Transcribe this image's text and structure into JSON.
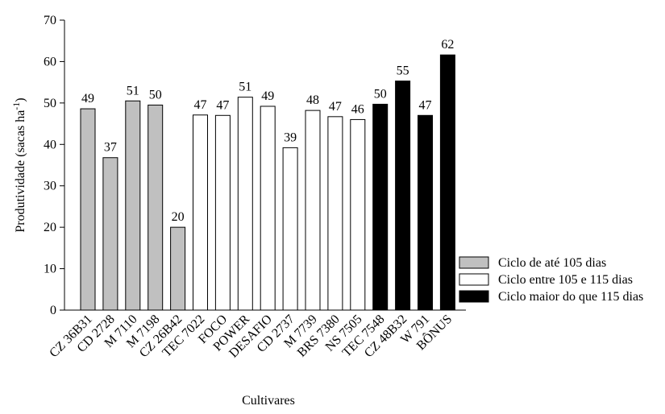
{
  "chart_data": {
    "type": "bar",
    "xlabel": "Cultivares",
    "ylabel": {
      "text": "Produtividade (sacas ha",
      "superscript": "-1",
      "end": ")"
    },
    "categories": [
      "CZ 36B31",
      "CD 2728",
      "M 7110",
      "M 7198",
      "CZ 26B42",
      "TEC 7022",
      "FOCO",
      "POWER",
      "DESAFIO",
      "CD 2737",
      "M 7739",
      "BRS 7380",
      "NS 7505",
      "TEC 7548",
      "CZ 48B32",
      "W 791",
      "BÔNUS"
    ],
    "series": [
      {
        "name": "Ciclo de até 105 dias",
        "color": "#c0c0c0",
        "values": [
          48.6,
          36.8,
          50.5,
          49.5,
          20.0,
          null,
          null,
          null,
          null,
          null,
          null,
          null,
          null,
          null,
          null,
          null,
          null
        ],
        "value_labels": [
          "49",
          "37",
          "51",
          "50",
          "20",
          null,
          null,
          null,
          null,
          null,
          null,
          null,
          null,
          null,
          null,
          null,
          null
        ]
      },
      {
        "name": "Ciclo entre 105 e 115 dias",
        "color": "#ffffff",
        "values": [
          null,
          null,
          null,
          null,
          null,
          47.1,
          47.0,
          51.4,
          49.2,
          39.2,
          48.2,
          46.7,
          46.0,
          null,
          null,
          null,
          null
        ],
        "value_labels": [
          null,
          null,
          null,
          null,
          null,
          "47",
          "47",
          "51",
          "49",
          "39",
          "48",
          "47",
          "46",
          null,
          null,
          null,
          null
        ]
      },
      {
        "name": "Ciclo maior do que 115 dias",
        "color": "#000000",
        "values": [
          null,
          null,
          null,
          null,
          null,
          null,
          null,
          null,
          null,
          null,
          null,
          null,
          null,
          49.7,
          55.3,
          47.0,
          61.6
        ],
        "value_labels": [
          null,
          null,
          null,
          null,
          null,
          null,
          null,
          null,
          null,
          null,
          null,
          null,
          null,
          "50",
          "55",
          "47",
          "62"
        ]
      }
    ],
    "ylim": [
      0,
      70
    ],
    "yticks": [
      0,
      10,
      20,
      30,
      40,
      50,
      60,
      70
    ],
    "legend": "lower right"
  }
}
